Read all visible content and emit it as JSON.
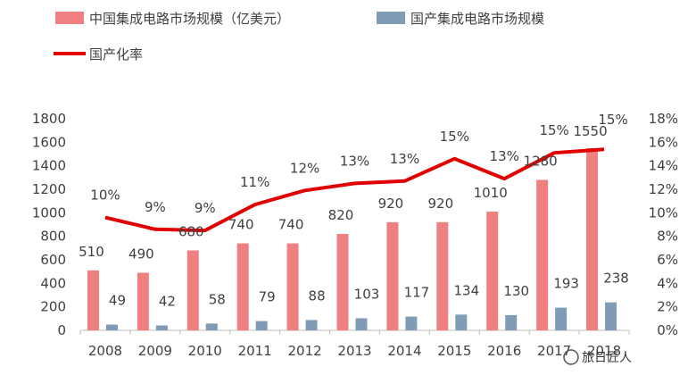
{
  "chart_data": {
    "type": "bar",
    "categories": [
      "2008",
      "2009",
      "2010",
      "2011",
      "2012",
      "2013",
      "2014",
      "2015",
      "2016",
      "2017",
      "2018"
    ],
    "series": [
      {
        "name": "中国集成电路市场规模（亿美元）",
        "kind": "bar",
        "axis": "left",
        "values": [
          510,
          490,
          680,
          740,
          740,
          820,
          920,
          920,
          1010,
          1280,
          1550
        ],
        "color": "#f08080"
      },
      {
        "name": "国产集成电路市场规模",
        "kind": "bar",
        "axis": "left",
        "values": [
          49,
          42,
          58,
          79,
          88,
          103,
          117,
          134,
          130,
          193,
          238
        ],
        "color": "#7f9bb5"
      },
      {
        "name": "国产化率",
        "kind": "line",
        "axis": "right",
        "values": [
          9.6,
          8.6,
          8.5,
          10.7,
          11.9,
          12.5,
          12.7,
          14.6,
          12.9,
          15.1,
          15.4
        ],
        "labels": [
          "10%",
          "9%",
          "9%",
          "11%",
          "12%",
          "13%",
          "13%",
          "15%",
          "13%",
          "15%",
          "15%"
        ],
        "color": "#e00000"
      }
    ],
    "ylim_left": [
      0,
      1800
    ],
    "yticks_left": [
      "0",
      "200",
      "400",
      "600",
      "800",
      "1000",
      "1200",
      "1400",
      "1600",
      "1800"
    ],
    "ylim_right": [
      0,
      18
    ],
    "yticks_right": [
      "0%",
      "2%",
      "4%",
      "6%",
      "8%",
      "10%",
      "12%",
      "14%",
      "16%",
      "18%"
    ],
    "legend_position": "top-left",
    "grid": false
  },
  "watermark": "旅日匠人"
}
